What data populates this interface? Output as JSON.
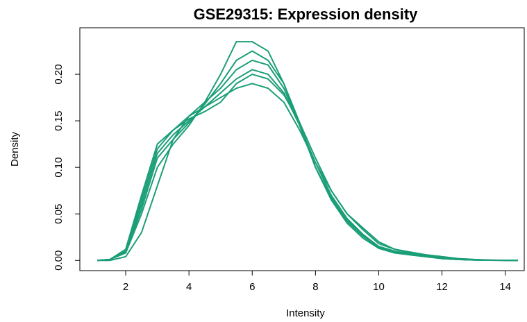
{
  "chart_data": {
    "type": "line",
    "title": "GSE29315: Expression density",
    "x_label": "Intensity",
    "y_label": "Density",
    "xlim": [
      0.55,
      14.6
    ],
    "ylim": [
      -0.011,
      0.25
    ],
    "xticks": [
      2,
      4,
      6,
      8,
      10,
      12,
      14
    ],
    "yticks": [
      {
        "value": 0,
        "label": "0.00"
      },
      {
        "value": 0.05,
        "label": "0.05"
      },
      {
        "value": 0.1,
        "label": "0.10"
      },
      {
        "value": 0.15,
        "label": "0.15"
      },
      {
        "value": 0.2,
        "label": "0.20"
      }
    ],
    "x": [
      1.1,
      1.5,
      2,
      2.5,
      3,
      3.5,
      4,
      4.5,
      5,
      5.5,
      6,
      6.5,
      7,
      7.5,
      8,
      8.5,
      9,
      9.5,
      10,
      10.5,
      11,
      11.5,
      12,
      12.5,
      13,
      13.5,
      14,
      14.4
    ],
    "series": [
      {
        "color": "#1b9e77",
        "values": [
          0,
          0.001,
          0.01,
          0.06,
          0.115,
          0.135,
          0.15,
          0.165,
          0.18,
          0.195,
          0.205,
          0.2,
          0.18,
          0.145,
          0.105,
          0.07,
          0.045,
          0.028,
          0.015,
          0.01,
          0.007,
          0.005,
          0.003,
          0.0015,
          0.0008,
          0.0003,
          0.0001,
          0
        ]
      },
      {
        "color": "#1b9e77",
        "values": [
          0,
          0.001,
          0.008,
          0.05,
          0.1,
          0.125,
          0.145,
          0.17,
          0.2,
          0.235,
          0.235,
          0.225,
          0.19,
          0.145,
          0.1,
          0.065,
          0.04,
          0.024,
          0.013,
          0.008,
          0.006,
          0.004,
          0.002,
          0.001,
          0.0005,
          0.0002,
          0.0001,
          0
        ]
      },
      {
        "color": "#1b9e77",
        "values": [
          0,
          0.001,
          0.012,
          0.07,
          0.125,
          0.14,
          0.155,
          0.165,
          0.175,
          0.185,
          0.19,
          0.185,
          0.17,
          0.14,
          0.105,
          0.075,
          0.05,
          0.033,
          0.018,
          0.012,
          0.009,
          0.006,
          0.004,
          0.002,
          0.001,
          0.0004,
          0.0001,
          0
        ]
      },
      {
        "color": "#1b9e77",
        "values": [
          0,
          0,
          0.004,
          0.03,
          0.08,
          0.13,
          0.155,
          0.17,
          0.185,
          0.205,
          0.215,
          0.21,
          0.185,
          0.145,
          0.1,
          0.068,
          0.042,
          0.026,
          0.014,
          0.009,
          0.006,
          0.004,
          0.002,
          0.001,
          0.0005,
          0.0002,
          0.0001,
          0
        ]
      },
      {
        "color": "#1b9e77",
        "values": [
          0,
          0.001,
          0.01,
          0.065,
          0.12,
          0.14,
          0.152,
          0.16,
          0.17,
          0.19,
          0.2,
          0.195,
          0.178,
          0.148,
          0.11,
          0.075,
          0.05,
          0.035,
          0.02,
          0.012,
          0.008,
          0.006,
          0.004,
          0.002,
          0.001,
          0.0003,
          0.0001,
          0
        ]
      },
      {
        "color": "#1b9e77",
        "values": [
          0,
          0.001,
          0.009,
          0.055,
          0.11,
          0.13,
          0.148,
          0.168,
          0.19,
          0.215,
          0.225,
          0.215,
          0.19,
          0.148,
          0.1,
          0.066,
          0.043,
          0.027,
          0.014,
          0.009,
          0.006,
          0.004,
          0.002,
          0.001,
          0.0005,
          0.0002,
          0.0001,
          0
        ]
      }
    ]
  }
}
